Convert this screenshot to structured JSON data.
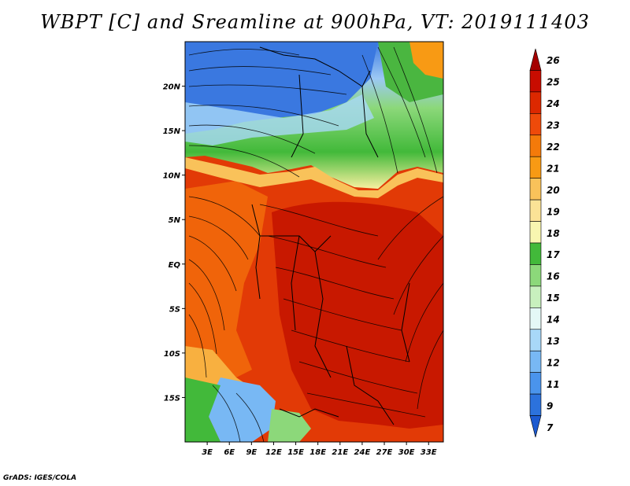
{
  "title": "WBPT [C] and Sreamline at 900hPa, VT: 2019111403",
  "credit": "GrADS: IGES/COLA",
  "map": {
    "lon_range": [
      0,
      35
    ],
    "lat_range": [
      -20,
      25
    ],
    "lat_ticks": [
      {
        "value": 20,
        "label": "20N"
      },
      {
        "value": 15,
        "label": "15N"
      },
      {
        "value": 10,
        "label": "10N"
      },
      {
        "value": 5,
        "label": "5N"
      },
      {
        "value": 0,
        "label": "EQ"
      },
      {
        "value": -5,
        "label": "5S"
      },
      {
        "value": -10,
        "label": "10S"
      },
      {
        "value": -15,
        "label": "15S"
      }
    ],
    "lon_ticks": [
      {
        "value": 3,
        "label": "3E"
      },
      {
        "value": 6,
        "label": "6E"
      },
      {
        "value": 9,
        "label": "9E"
      },
      {
        "value": 12,
        "label": "12E"
      },
      {
        "value": 15,
        "label": "15E"
      },
      {
        "value": 18,
        "label": "18E"
      },
      {
        "value": 21,
        "label": "21E"
      },
      {
        "value": 24,
        "label": "24E"
      },
      {
        "value": 27,
        "label": "27E"
      },
      {
        "value": 30,
        "label": "30E"
      },
      {
        "value": 33,
        "label": "33E"
      }
    ]
  },
  "colorbar": {
    "levels": [
      {
        "label": "26",
        "color": "#a50000"
      },
      {
        "label": "25",
        "color": "#c80c00"
      },
      {
        "label": "24",
        "color": "#dc2800"
      },
      {
        "label": "23",
        "color": "#ee4a0a"
      },
      {
        "label": "22",
        "color": "#f47a0a"
      },
      {
        "label": "21",
        "color": "#f89a14"
      },
      {
        "label": "20",
        "color": "#f9c25a"
      },
      {
        "label": "19",
        "color": "#fbe296"
      },
      {
        "label": "18",
        "color": "#f8f6b0"
      },
      {
        "label": "17",
        "color": "#42b93a"
      },
      {
        "label": "16",
        "color": "#8cd87a"
      },
      {
        "label": "15",
        "color": "#c8f0be"
      },
      {
        "label": "14",
        "color": "#e4f8f6"
      },
      {
        "label": "13",
        "color": "#a8d8f8"
      },
      {
        "label": "12",
        "color": "#78b8f4"
      },
      {
        "label": "11",
        "color": "#4a94ec"
      },
      {
        "label": "9",
        "color": "#2c72dc"
      },
      {
        "label": "7",
        "color": "#1c5ad0"
      }
    ]
  }
}
